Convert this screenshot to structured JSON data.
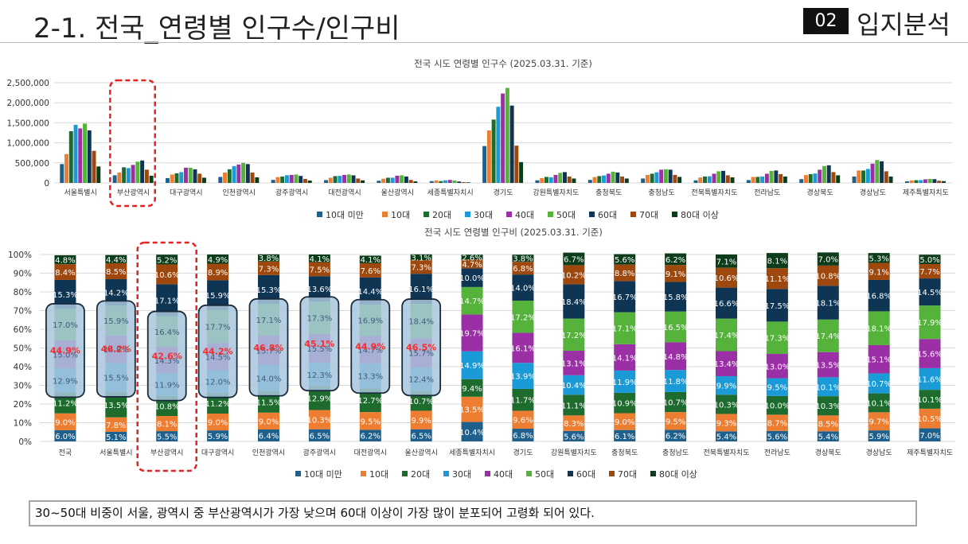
{
  "slide": {
    "title": "2-1. 전국_연령별 인구수/인구비",
    "section_number": "02",
    "section_title": "입지분석"
  },
  "note": "30~50대 비중이 서울, 광역시 중 부산광역시가 가장 낮으며 60대 이상이 가장 많이 분포되어 고령화 되어 있다.",
  "colors": {
    "series": [
      "#1f5f8b",
      "#ed7d31",
      "#1e6b2e",
      "#1a9bd7",
      "#9b30a6",
      "#55b33b",
      "#0f3554",
      "#9e480e",
      "#0b3d1a"
    ],
    "highlight_red": "#e32222",
    "group_fill": "#a9c6dc",
    "group_border": "#1a2b3c",
    "label_red": "#ff2a2a"
  },
  "chart_data": [
    {
      "type": "bar",
      "title": "전국 시도 연령별 인구수 (2025.03.31. 기준)",
      "categories": [
        "서울특별시",
        "부산광역시",
        "대구광역시",
        "인천광역시",
        "광주광역시",
        "대전광역시",
        "울산광역시",
        "세종특별자치시",
        "경기도",
        "강원특별자치도",
        "충청북도",
        "충청남도",
        "전북특별자치도",
        "전라남도",
        "경상북도",
        "경상남도",
        "제주특별자치도"
      ],
      "series": [
        {
          "name": "10대 미만",
          "values": [
            470000,
            190000,
            120000,
            150000,
            75000,
            70000,
            55000,
            45000,
            920000,
            65000,
            75000,
            110000,
            65000,
            70000,
            95000,
            160000,
            40000
          ]
        },
        {
          "name": "10대",
          "values": [
            720000,
            260000,
            210000,
            260000,
            145000,
            130000,
            105000,
            62000,
            1310000,
            120000,
            145000,
            200000,
            135000,
            150000,
            195000,
            310000,
            62000
          ]
        },
        {
          "name": "20대",
          "values": [
            1290000,
            390000,
            240000,
            340000,
            160000,
            170000,
            130000,
            45000,
            1580000,
            150000,
            170000,
            230000,
            160000,
            150000,
            220000,
            310000,
            68000
          ]
        },
        {
          "name": "30대",
          "values": [
            1450000,
            370000,
            270000,
            420000,
            190000,
            175000,
            130000,
            65000,
            1900000,
            140000,
            185000,
            265000,
            165000,
            160000,
            235000,
            350000,
            70000
          ]
        },
        {
          "name": "40대",
          "values": [
            1360000,
            450000,
            380000,
            460000,
            200000,
            200000,
            180000,
            75000,
            2230000,
            200000,
            230000,
            330000,
            230000,
            230000,
            330000,
            480000,
            90000
          ]
        },
        {
          "name": "50대",
          "values": [
            1480000,
            530000,
            380000,
            500000,
            210000,
            210000,
            190000,
            60000,
            2370000,
            250000,
            280000,
            340000,
            290000,
            300000,
            420000,
            570000,
            100000
          ]
        },
        {
          "name": "60대",
          "values": [
            1310000,
            560000,
            340000,
            470000,
            175000,
            190000,
            160000,
            35000,
            1930000,
            270000,
            260000,
            330000,
            300000,
            310000,
            440000,
            540000,
            95000
          ]
        },
        {
          "name": "70대",
          "values": [
            800000,
            330000,
            230000,
            260000,
            100000,
            110000,
            75000,
            20000,
            930000,
            160000,
            160000,
            200000,
            190000,
            220000,
            270000,
            290000,
            55000
          ]
        },
        {
          "name": "80대 이상",
          "values": [
            410000,
            180000,
            130000,
            140000,
            60000,
            65000,
            38000,
            15000,
            520000,
            110000,
            110000,
            150000,
            140000,
            160000,
            190000,
            160000,
            45000
          ]
        }
      ],
      "yticks": [
        "0",
        "500,000",
        "1,000,000",
        "1,500,000",
        "2,000,000",
        "2,500,000"
      ],
      "ylim": [
        0,
        2500000
      ],
      "legend": "bottom",
      "grid": true,
      "highlight": "부산광역시"
    },
    {
      "type": "bar",
      "stacked": "percent",
      "title": "전국 시도 연령별 인구비 (2025.03.31. 기준)",
      "categories": [
        "전국",
        "서울특별시",
        "부산광역시",
        "대구광역시",
        "인천광역시",
        "광주광역시",
        "대전광역시",
        "울산광역시",
        "세종특별자치시",
        "경기도",
        "강원특별자치도",
        "충청북도",
        "충청남도",
        "전북특별자치도",
        "전라남도",
        "경상북도",
        "경상남도",
        "제주특별자치도"
      ],
      "series": [
        {
          "name": "10대 미만",
          "values": [
            6.0,
            5.1,
            5.5,
            5.9,
            6.4,
            6.5,
            6.2,
            6.5,
            10.4,
            6.8,
            5.6,
            6.1,
            6.2,
            5.4,
            5.6,
            5.4,
            5.9,
            7.0
          ]
        },
        {
          "name": "10대",
          "values": [
            9.0,
            7.8,
            8.1,
            9.0,
            9.0,
            10.3,
            9.5,
            9.9,
            13.5,
            9.6,
            8.3,
            9.0,
            9.5,
            9.3,
            8.7,
            8.5,
            9.7,
            10.5
          ]
        },
        {
          "name": "20대",
          "values": [
            11.2,
            13.5,
            10.8,
            11.2,
            11.5,
            12.9,
            12.7,
            10.7,
            9.4,
            11.7,
            11.1,
            10.9,
            10.7,
            10.3,
            10.0,
            10.3,
            10.1,
            10.1
          ]
        },
        {
          "name": "30대",
          "values": [
            12.9,
            15.5,
            11.9,
            12.0,
            14.0,
            12.3,
            13.3,
            12.4,
            14.9,
            13.9,
            10.4,
            11.9,
            11.8,
            9.9,
            9.5,
            10.1,
            10.7,
            11.6
          ]
        },
        {
          "name": "40대",
          "values": [
            15.0,
            14.8,
            14.3,
            14.5,
            15.7,
            15.5,
            14.7,
            15.7,
            19.7,
            16.1,
            13.1,
            14.1,
            14.8,
            13.4,
            13.0,
            13.5,
            15.1,
            15.6
          ]
        },
        {
          "name": "50대",
          "values": [
            17.0,
            15.9,
            16.4,
            17.7,
            17.1,
            17.3,
            16.9,
            18.4,
            14.7,
            17.2,
            17.2,
            17.1,
            16.5,
            17.4,
            17.3,
            17.4,
            18.1,
            17.9
          ]
        },
        {
          "name": "60대",
          "values": [
            15.3,
            14.2,
            17.1,
            15.9,
            15.3,
            13.6,
            14.4,
            16.1,
            10.0,
            14.0,
            18.4,
            16.7,
            15.8,
            16.6,
            17.5,
            18.1,
            16.8,
            14.5
          ]
        },
        {
          "name": "70대",
          "values": [
            8.4,
            8.5,
            10.6,
            8.9,
            7.3,
            7.5,
            7.6,
            7.3,
            4.7,
            6.8,
            10.2,
            8.8,
            9.1,
            10.6,
            11.1,
            10.8,
            9.1,
            7.7
          ]
        },
        {
          "name": "80대 이상",
          "values": [
            4.8,
            4.4,
            5.2,
            4.9,
            3.8,
            4.1,
            4.1,
            3.1,
            2.6,
            3.8,
            6.7,
            5.6,
            6.2,
            7.1,
            8.1,
            7.0,
            5.3,
            5.0
          ]
        }
      ],
      "yticks": [
        "0%",
        "10%",
        "20%",
        "30%",
        "40%",
        "50%",
        "60%",
        "70%",
        "80%",
        "90%",
        "100%"
      ],
      "ylim": [
        0,
        100
      ],
      "legend": "bottom",
      "grid": true,
      "group_totals": [
        {
          "category": "전국",
          "label": "44.9%"
        },
        {
          "category": "서울특별시",
          "label": "46.2%"
        },
        {
          "category": "부산광역시",
          "label": "42.6%"
        },
        {
          "category": "대구광역시",
          "label": "44.2%"
        },
        {
          "category": "인천광역시",
          "label": "46.8%"
        },
        {
          "category": "광주광역시",
          "label": "45.1%"
        },
        {
          "category": "대전광역시",
          "label": "44.9%"
        },
        {
          "category": "울산광역시",
          "label": "46.5%"
        }
      ],
      "highlight": "부산광역시"
    }
  ]
}
